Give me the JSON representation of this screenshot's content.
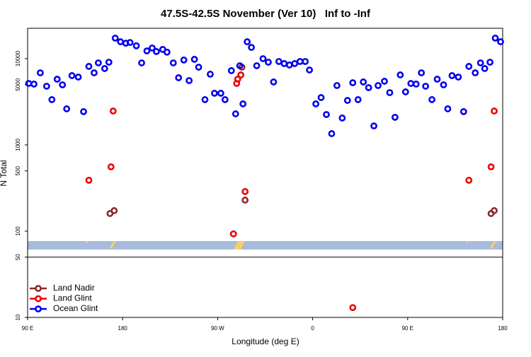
{
  "chart_data": {
    "type": "scatter",
    "title": "47.5S-42.5S November (Ver 10)   Inf to -Inf",
    "xlabel": "Longitude (deg E)",
    "ylabel": "N Total",
    "xlim": [
      90,
      540
    ],
    "xticks": [
      {
        "value": 90,
        "label": "90 E"
      },
      180,
      {
        "value": 270,
        "label": "90 W"
      },
      {
        "value": 360,
        "label": "0"
      },
      {
        "value": 450,
        "label": "90 E"
      },
      {
        "value": 540,
        "label": "180"
      }
    ],
    "ylim": [
      10,
      22500
    ],
    "ylog": true,
    "yticks": [
      10,
      50,
      100,
      500,
      1000,
      5000,
      10000
    ],
    "legend": "bottom-left",
    "series": [
      {
        "name": "Land Nadir",
        "color": "#8b2a2a",
        "x": [
          168,
          172,
          293,
          296,
          529,
          532
        ],
        "values": [
          160,
          173,
          7970,
          229,
          160,
          173
        ]
      },
      {
        "name": "Land Glint",
        "color": "#ee0000",
        "x": [
          171,
          148,
          169,
          285,
          288,
          289,
          292,
          296,
          398,
          532,
          508,
          529
        ],
        "values": [
          2470,
          389,
          557,
          93,
          5160,
          5780,
          6480,
          288,
          13,
          2470,
          389,
          557
        ]
      },
      {
        "name": "Ocean Glint",
        "color": "#0000ee",
        "x": [
          91,
          96,
          102,
          108,
          113,
          118,
          123,
          127,
          132,
          138,
          143,
          148,
          153,
          157,
          163,
          167,
          173,
          178,
          183,
          187,
          193,
          198,
          203,
          208,
          212,
          218,
          222,
          228,
          233,
          238,
          243,
          248,
          252,
          258,
          263,
          267,
          273,
          277,
          283,
          287,
          291,
          294,
          298,
          302,
          307,
          313,
          318,
          323,
          328,
          333,
          338,
          343,
          348,
          353,
          357,
          363,
          368,
          373,
          378,
          383,
          388,
          393,
          398,
          403,
          408,
          413,
          418,
          422,
          428,
          433,
          438,
          443,
          448,
          453,
          458,
          463,
          467,
          473,
          478,
          484,
          488,
          492,
          498,
          503,
          508,
          514,
          519,
          523,
          528,
          533,
          538
        ],
        "values": [
          5160,
          5070,
          6850,
          4790,
          3350,
          5780,
          4970,
          2620,
          6360,
          6120,
          2430,
          8130,
          6850,
          8930,
          7680,
          9100,
          17300,
          15700,
          15100,
          15400,
          14100,
          8930,
          12300,
          13300,
          12100,
          12800,
          11900,
          8930,
          6010,
          9640,
          5570,
          9820,
          7970,
          3350,
          6610,
          3970,
          3970,
          3350,
          7260,
          2290,
          8280,
          2990,
          15700,
          13500,
          8280,
          10000,
          9100,
          5370,
          9270,
          8770,
          8440,
          8770,
          9270,
          9270,
          7390,
          2990,
          3540,
          2250,
          1350,
          4880,
          2050,
          3280,
          5260,
          3350,
          5370,
          4610,
          1660,
          4880,
          5470,
          4040,
          2090,
          6480,
          4120,
          5160,
          5070,
          6850,
          4790,
          3350,
          5780,
          4970,
          2620,
          6360,
          6120,
          2430,
          8130,
          6850,
          8930,
          7680,
          9100,
          17300,
          15700
        ]
      }
    ]
  }
}
